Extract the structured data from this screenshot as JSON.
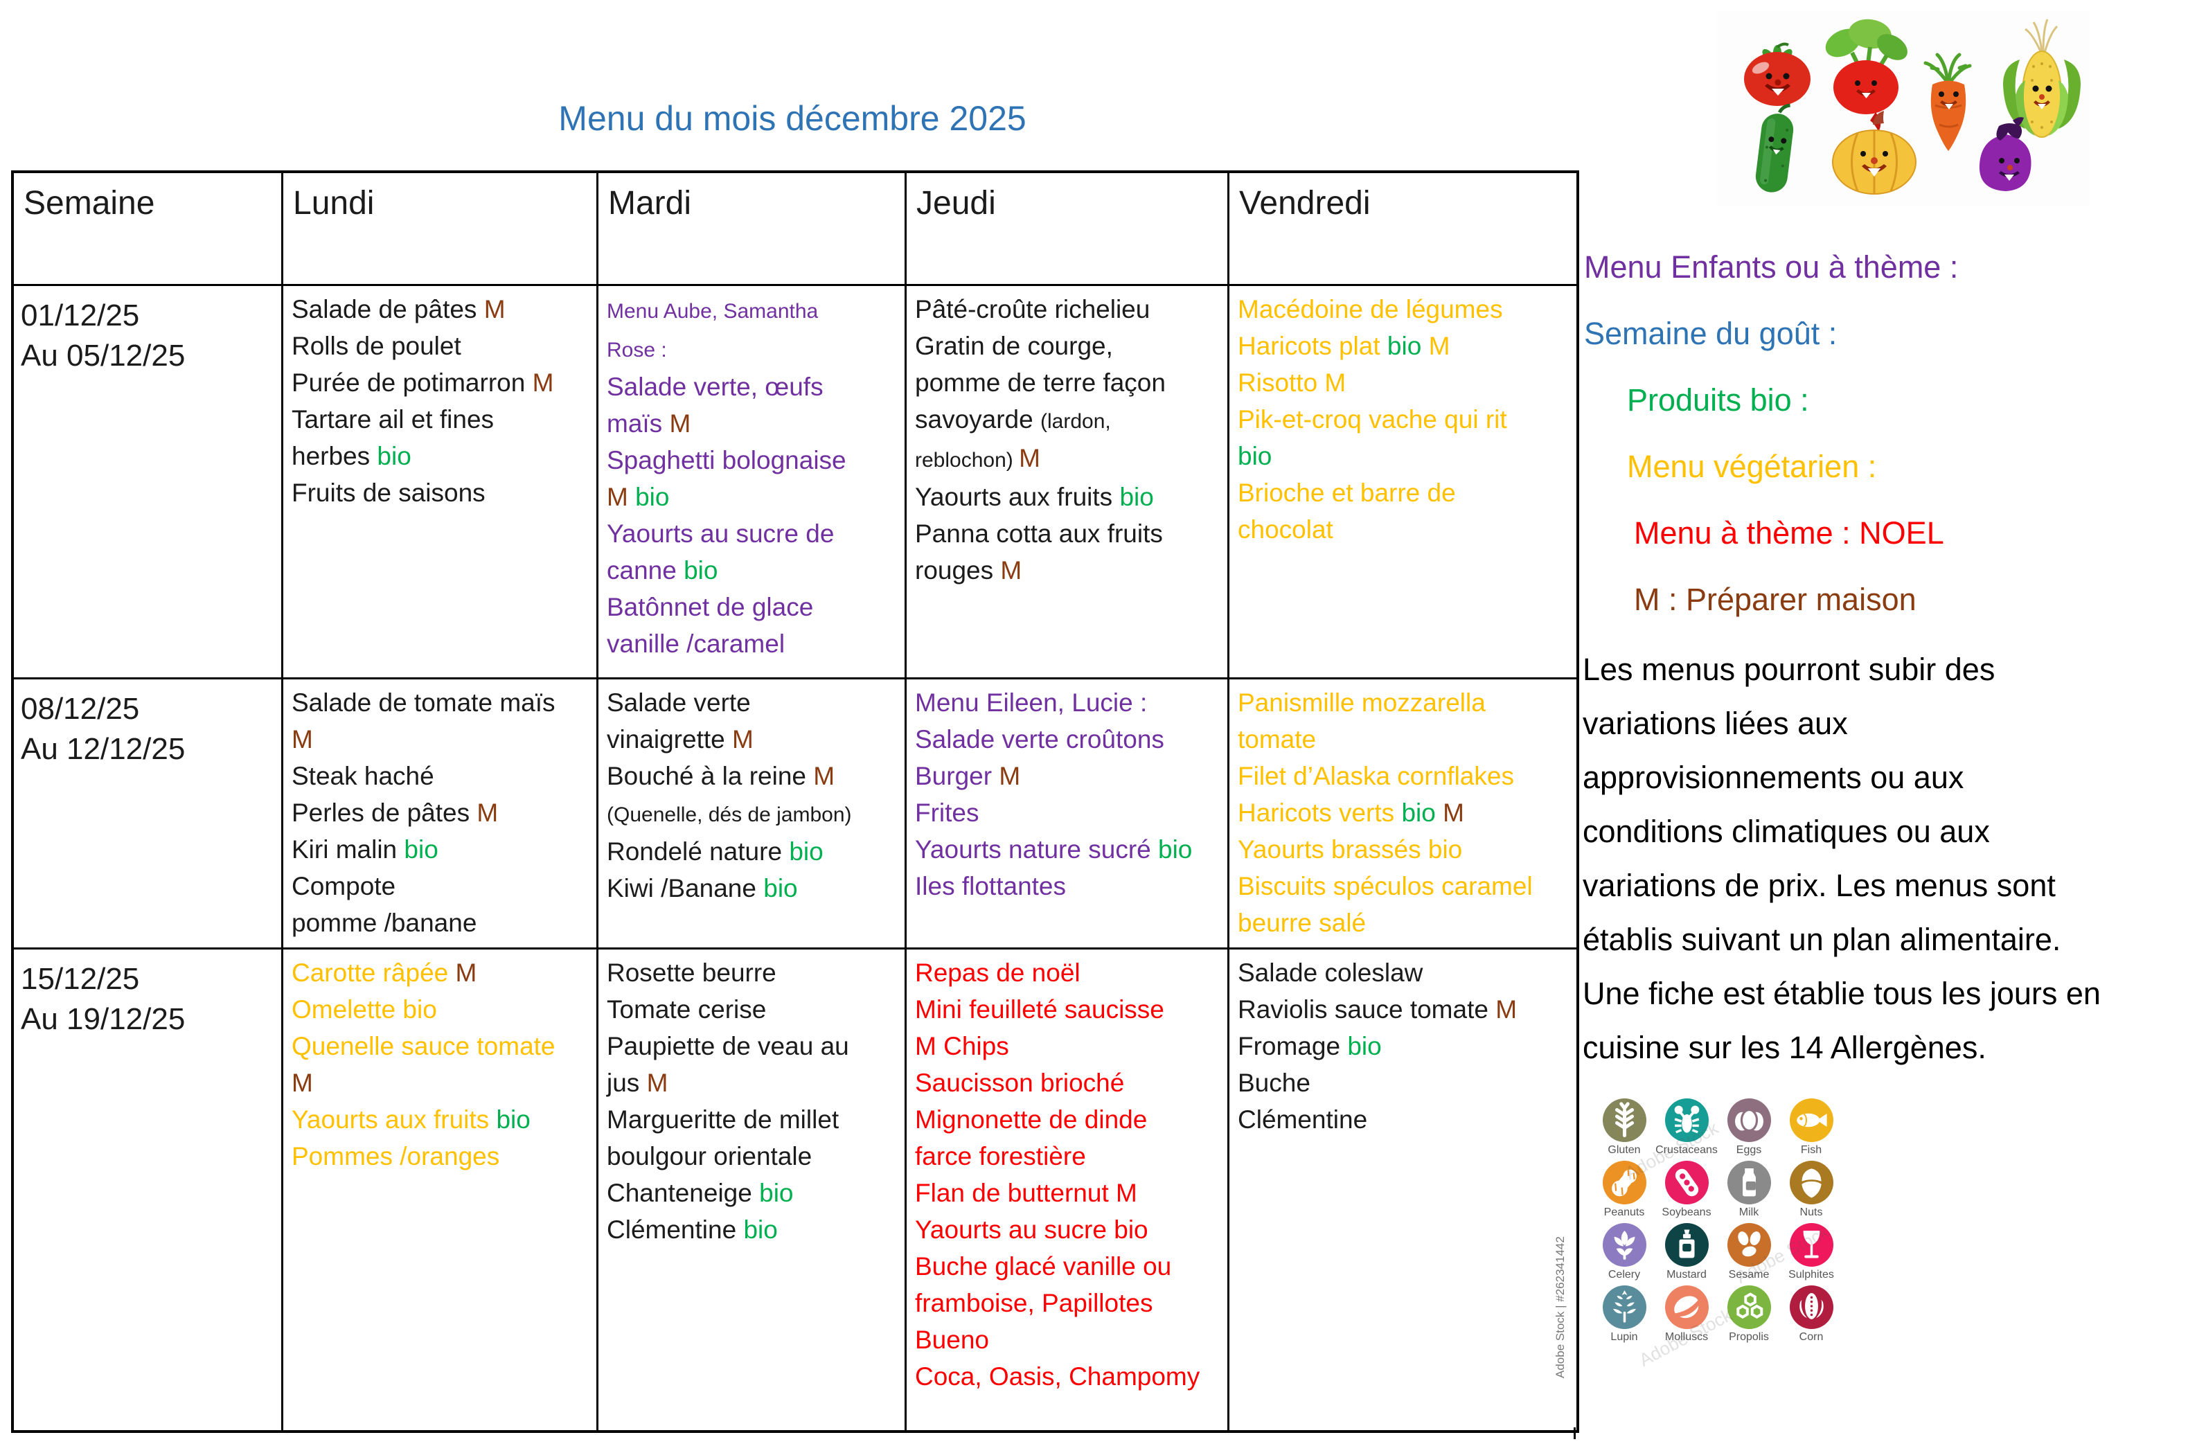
{
  "title": "Menu du mois décembre 2025",
  "palette": {
    "black": "#1b1b1b",
    "M": "#8a3b10",
    "bio": "#00B050",
    "purple": "#7030A0",
    "yellow": "#FFC000",
    "red": "#FF0000",
    "blue": "#2E74B5"
  },
  "table": {
    "headers": [
      "Semaine",
      "Lundi",
      "Mardi",
      "Jeudi",
      "Vendredi"
    ],
    "weeks": [
      {
        "dates": [
          "01/12/25",
          "Au 05/12/25"
        ],
        "days": [
          {
            "day": "lundi",
            "base": "black",
            "lines": [
              [
                {
                  "t": "Salade de pâtes "
                },
                {
                  "t": "M",
                  "c": "M"
                }
              ],
              [
                {
                  "t": "Rolls de poulet"
                }
              ],
              [
                {
                  "t": "Purée de potimarron "
                },
                {
                  "t": "M",
                  "c": "M"
                }
              ],
              [
                {
                  "t": "Tartare ail et fines"
                }
              ],
              [
                {
                  "t": "herbes "
                },
                {
                  "t": "bio",
                  "c": "bio"
                }
              ],
              [
                {
                  "t": "Fruits de saisons"
                }
              ]
            ]
          },
          {
            "day": "mardi",
            "base": "purple",
            "lines": [
              [
                {
                  "t": "Menu Aube, Samantha",
                  "s": 1
                }
              ],
              [
                {
                  "t": "Rose :",
                  "s": 1
                }
              ],
              [
                {
                  "t": "Salade verte, œufs"
                }
              ],
              [
                {
                  "t": "maïs "
                },
                {
                  "t": "M",
                  "c": "M"
                }
              ],
              [
                {
                  "t": "Spaghetti bolognaise"
                }
              ],
              [
                {
                  "t": "M",
                  "c": "M"
                },
                {
                  "t": " "
                },
                {
                  "t": "bio",
                  "c": "bio"
                }
              ],
              [
                {
                  "t": "Yaourts au sucre de"
                }
              ],
              [
                {
                  "t": "canne "
                },
                {
                  "t": "bio",
                  "c": "bio"
                }
              ],
              [
                {
                  "t": "Batônnet de glace"
                }
              ],
              [
                {
                  "t": "vanille /caramel"
                }
              ]
            ]
          },
          {
            "day": "jeudi",
            "base": "black",
            "lines": [
              [
                {
                  "t": "Pâté-croûte richelieu"
                }
              ],
              [
                {
                  "t": "Gratin de courge,"
                }
              ],
              [
                {
                  "t": "pomme de terre façon"
                }
              ],
              [
                {
                  "t": "savoyarde "
                },
                {
                  "t": "(lardon,",
                  "s": 1
                }
              ],
              [
                {
                  "t": "reblochon) ",
                  "s": 1
                },
                {
                  "t": "M",
                  "c": "M"
                }
              ],
              [
                {
                  "t": "Yaourts aux fruits "
                },
                {
                  "t": "bio",
                  "c": "bio"
                }
              ],
              [
                {
                  "t": "Panna cotta aux fruits"
                }
              ],
              [
                {
                  "t": "rouges "
                },
                {
                  "t": "M",
                  "c": "M"
                }
              ]
            ]
          },
          {
            "day": "vendredi",
            "base": "yellow",
            "lines": [
              [
                {
                  "t": "Macédoine de légumes"
                }
              ],
              [
                {
                  "t": "Haricots plat "
                },
                {
                  "t": "bio",
                  "c": "bio"
                },
                {
                  "t": " M"
                }
              ],
              [
                {
                  "t": "Risotto M"
                }
              ],
              [
                {
                  "t": "Pik-et-croq vache qui rit"
                }
              ],
              [
                {
                  "t": "bio",
                  "c": "bio"
                }
              ],
              [
                {
                  "t": "Brioche et barre de"
                }
              ],
              [
                {
                  "t": "chocolat"
                }
              ]
            ]
          }
        ]
      },
      {
        "dates": [
          "08/12/25",
          "Au 12/12/25"
        ],
        "days": [
          {
            "day": "lundi",
            "base": "black",
            "lines": [
              [
                {
                  "t": "Salade de tomate maïs"
                }
              ],
              [
                {
                  "t": "M",
                  "c": "M"
                }
              ],
              [
                {
                  "t": "Steak haché"
                }
              ],
              [
                {
                  "t": "Perles de pâtes "
                },
                {
                  "t": "M",
                  "c": "M"
                }
              ],
              [
                {
                  "t": "Kiri malin "
                },
                {
                  "t": "bio",
                  "c": "bio"
                }
              ],
              [
                {
                  "t": "Compote"
                }
              ],
              [
                {
                  "t": "pomme /banane"
                }
              ]
            ]
          },
          {
            "day": "mardi",
            "base": "black",
            "lines": [
              [
                {
                  "t": "Salade verte"
                }
              ],
              [
                {
                  "t": "vinaigrette "
                },
                {
                  "t": "M",
                  "c": "M"
                }
              ],
              [
                {
                  "t": "Bouché à la reine "
                },
                {
                  "t": "M",
                  "c": "M"
                }
              ],
              [
                {
                  "t": "(Quenelle, dés de jambon)",
                  "s": 1
                }
              ],
              [
                {
                  "t": "Rondelé nature "
                },
                {
                  "t": "bio",
                  "c": "bio"
                }
              ],
              [
                {
                  "t": "Kiwi /Banane "
                },
                {
                  "t": "bio",
                  "c": "bio"
                }
              ]
            ]
          },
          {
            "day": "jeudi",
            "base": "purple",
            "lines": [
              [
                {
                  "t": "Menu Eileen, Lucie :"
                }
              ],
              [
                {
                  "t": "Salade verte croûtons"
                }
              ],
              [
                {
                  "t": "Burger "
                },
                {
                  "t": "M",
                  "c": "M"
                }
              ],
              [
                {
                  "t": "Frites"
                }
              ],
              [
                {
                  "t": "Yaourts nature sucré "
                },
                {
                  "t": "bio",
                  "c": "bio"
                }
              ],
              [
                {
                  "t": "Iles flottantes"
                }
              ]
            ]
          },
          {
            "day": "vendredi",
            "base": "yellow",
            "lines": [
              [
                {
                  "t": "Panismille mozzarella"
                }
              ],
              [
                {
                  "t": "tomate"
                }
              ],
              [
                {
                  "t": "Filet d’Alaska cornflakes"
                }
              ],
              [
                {
                  "t": "Haricots verts "
                },
                {
                  "t": "bio",
                  "c": "bio"
                },
                {
                  "t": " "
                },
                {
                  "t": "M",
                  "c": "M"
                }
              ],
              [
                {
                  "t": "Yaourts brassés bio"
                }
              ],
              [
                {
                  "t": "Biscuits spéculos caramel"
                }
              ],
              [
                {
                  "t": "beurre salé"
                }
              ]
            ]
          }
        ]
      },
      {
        "dates": [
          "15/12/25",
          "Au 19/12/25"
        ],
        "days": [
          {
            "day": "lundi",
            "base": "yellow",
            "lines": [
              [
                {
                  "t": "Carotte râpée "
                },
                {
                  "t": "M",
                  "c": "M"
                }
              ],
              [
                {
                  "t": "Omelette bio"
                }
              ],
              [
                {
                  "t": "Quenelle sauce tomate"
                }
              ],
              [
                {
                  "t": "M",
                  "c": "M"
                }
              ],
              [
                {
                  "t": "Yaourts aux fruits "
                },
                {
                  "t": "bio",
                  "c": "bio"
                }
              ],
              [
                {
                  "t": "Pommes /oranges"
                }
              ]
            ]
          },
          {
            "day": "mardi",
            "base": "black",
            "lines": [
              [
                {
                  "t": "Rosette beurre"
                }
              ],
              [
                {
                  "t": "Tomate cerise"
                }
              ],
              [
                {
                  "t": "Paupiette de veau au"
                }
              ],
              [
                {
                  "t": "jus "
                },
                {
                  "t": "M",
                  "c": "M"
                }
              ],
              [
                {
                  "t": "Margueritte de millet"
                }
              ],
              [
                {
                  "t": "boulgour orientale"
                }
              ],
              [
                {
                  "t": "Chanteneige "
                },
                {
                  "t": "bio",
                  "c": "bio"
                }
              ],
              [
                {
                  "t": "Clémentine "
                },
                {
                  "t": "bio",
                  "c": "bio"
                }
              ]
            ]
          },
          {
            "day": "jeudi",
            "base": "red",
            "lines": [
              [
                {
                  "t": "Repas de noël"
                }
              ],
              [
                {
                  "t": "Mini feuilleté saucisse"
                }
              ],
              [
                {
                  "t": "M Chips"
                }
              ],
              [
                {
                  "t": "Saucisson brioché"
                }
              ],
              [
                {
                  "t": "Mignonette de dinde"
                }
              ],
              [
                {
                  "t": "farce forestière"
                }
              ],
              [
                {
                  "t": "Flan de butternut M"
                }
              ],
              [
                {
                  "t": "Yaourts au sucre bio"
                }
              ],
              [
                {
                  "t": "Buche glacé vanille ou"
                }
              ],
              [
                {
                  "t": "framboise, Papillotes"
                }
              ],
              [
                {
                  "t": "Bueno"
                }
              ],
              [
                {
                  "t": "Coca, Oasis, Champomy"
                }
              ]
            ]
          },
          {
            "day": "vendredi",
            "base": "black",
            "lines": [
              [
                {
                  "t": "Salade coleslaw"
                }
              ],
              [
                {
                  "t": "Raviolis sauce tomate "
                },
                {
                  "t": "M",
                  "c": "M"
                }
              ],
              [
                {
                  "t": "Fromage "
                },
                {
                  "t": "bio",
                  "c": "bio"
                }
              ],
              [
                {
                  "t": "Buche"
                }
              ],
              [
                {
                  "t": "Clémentine"
                }
              ]
            ]
          }
        ]
      }
    ]
  },
  "legend": {
    "items": [
      {
        "text": "Menu Enfants ou à thème :",
        "color": "purple",
        "indent": 0
      },
      {
        "text": "Semaine du goût :",
        "color": "blue",
        "indent": 0
      },
      {
        "text": "Produits bio :",
        "color": "bio",
        "indent": 62
      },
      {
        "text": "Menu végétarien :",
        "color": "yellow",
        "indent": 62
      },
      {
        "text": "Menu à thème : NOEL",
        "color": "red",
        "indent": 72
      },
      {
        "text": "M : Préparer maison",
        "color": "M",
        "indent": 72
      }
    ]
  },
  "notice": {
    "lines": [
      "Les menus pourront subir des",
      "variations liées aux",
      "approvisionnements ou aux",
      "conditions climatiques ou aux",
      "variations de prix. Les menus sont",
      "établis suivant un plan alimentaire.",
      "Une fiche est établie tous les jours en",
      "cuisine sur les 14 Allergènes."
    ]
  },
  "allergens": {
    "watermark_side": "Adobe Stock | #262341442",
    "watermark_diagonal": "Adobe Stock",
    "items": [
      {
        "label": "Gluten",
        "color": "#85865A",
        "icon": "wheat-icon"
      },
      {
        "label": "Crustaceans",
        "color": "#169E96",
        "icon": "crustacean-icon"
      },
      {
        "label": "Eggs",
        "color": "#8E6F80",
        "icon": "eggs-icon"
      },
      {
        "label": "Fish",
        "color": "#F0B41A",
        "icon": "fish-icon"
      },
      {
        "label": "Peanuts",
        "color": "#EC9123",
        "icon": "peanut-icon"
      },
      {
        "label": "Soybeans",
        "color": "#E81D62",
        "icon": "soybean-icon"
      },
      {
        "label": "Milk",
        "color": "#8A8A8A",
        "icon": "milk-icon"
      },
      {
        "label": "Nuts",
        "color": "#A97A22",
        "icon": "nut-icon"
      },
      {
        "label": "Celery",
        "color": "#8C7BC0",
        "icon": "celery-icon"
      },
      {
        "label": "Mustard",
        "color": "#0F4447",
        "icon": "mustard-icon"
      },
      {
        "label": "Sesame",
        "color": "#C8702A",
        "icon": "sesame-icon"
      },
      {
        "label": "Sulphites",
        "color": "#F0185C",
        "icon": "sulphites-icon"
      },
      {
        "label": "Lupin",
        "color": "#5A8D9B",
        "icon": "lupin-icon"
      },
      {
        "label": "Molluscs",
        "color": "#EF8163",
        "icon": "mollusc-icon"
      },
      {
        "label": "Propolis",
        "color": "#7CB53F",
        "icon": "propolis-icon"
      },
      {
        "label": "Corn",
        "color": "#B01D3E",
        "icon": "corn-icon"
      }
    ]
  }
}
